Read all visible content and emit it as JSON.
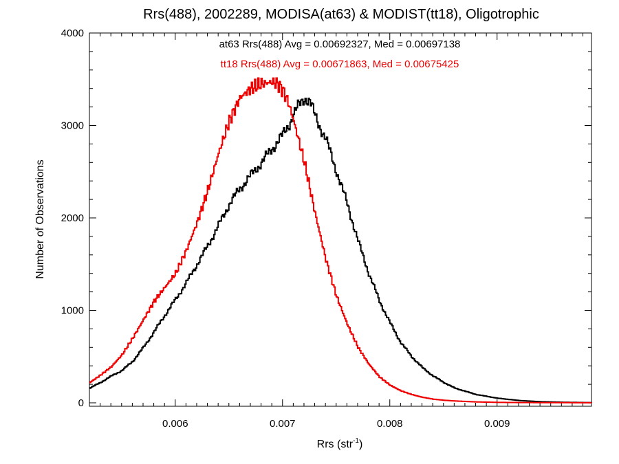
{
  "chart_data": {
    "type": "line",
    "title": "Rrs(488), 2002289, MODISA(at63) & MODIST(tt18), Oligotrophic",
    "xlabel_base": "Rrs (str",
    "xlabel_sup": "-1",
    "xlabel_close": ")",
    "ylabel": "Number of Observations",
    "xlim": [
      0.0052,
      0.00988
    ],
    "ylim": [
      0,
      4000
    ],
    "x_ticks": [
      0.006,
      0.007,
      0.008,
      0.009
    ],
    "x_tick_labels": [
      "0.006",
      "0.007",
      "0.008",
      "0.009"
    ],
    "y_ticks": [
      0,
      1000,
      2000,
      3000,
      4000
    ],
    "y_tick_labels": [
      "0",
      "1000",
      "2000",
      "3000",
      "4000"
    ],
    "annotations": [
      {
        "text": "at63 Rrs(488) Avg = 0.00692327, Med = 0.00697138",
        "color": "#000000"
      },
      {
        "text": "tt18 Rrs(488) Avg = 0.00671863, Med = 0.00675425",
        "color": "#ee0000"
      }
    ],
    "series": [
      {
        "color": "#000000",
        "x": [
          0.0052,
          0.0053,
          0.0054,
          0.0055,
          0.0056,
          0.0057,
          0.0058,
          0.0059,
          0.006,
          0.0061,
          0.0062,
          0.0063,
          0.0064,
          0.0065,
          0.0066,
          0.0067,
          0.0068,
          0.0069,
          0.007,
          0.00705,
          0.0071,
          0.00715,
          0.0072,
          0.00725,
          0.0073,
          0.0074,
          0.0075,
          0.0076,
          0.0077,
          0.0078,
          0.0079,
          0.008,
          0.0081,
          0.0082,
          0.0083,
          0.0084,
          0.0085,
          0.0086,
          0.0088,
          0.009,
          0.0092,
          0.0094,
          0.0096,
          0.00988
        ],
        "y": [
          160,
          220,
          290,
          350,
          450,
          600,
          770,
          950,
          1120,
          1300,
          1500,
          1700,
          1920,
          2150,
          2320,
          2460,
          2600,
          2750,
          2900,
          3000,
          3120,
          3220,
          3300,
          3260,
          3100,
          2850,
          2500,
          2150,
          1750,
          1400,
          1100,
          860,
          650,
          500,
          380,
          290,
          220,
          160,
          90,
          50,
          25,
          12,
          6,
          2
        ]
      },
      {
        "color": "#ee0000",
        "x": [
          0.0052,
          0.0053,
          0.0054,
          0.0055,
          0.0056,
          0.0057,
          0.0058,
          0.0059,
          0.006,
          0.0061,
          0.0062,
          0.0063,
          0.0064,
          0.0065,
          0.0066,
          0.0067,
          0.0068,
          0.0069,
          0.00695,
          0.007,
          0.00705,
          0.0071,
          0.0072,
          0.0073,
          0.0074,
          0.0075,
          0.0076,
          0.0077,
          0.0078,
          0.0079,
          0.008,
          0.0081,
          0.0082,
          0.0083,
          0.0084,
          0.0085,
          0.0086,
          0.0088,
          0.009,
          0.0092,
          0.0094,
          0.00988
        ],
        "y": [
          220,
          300,
          390,
          520,
          700,
          900,
          1100,
          1250,
          1400,
          1650,
          1950,
          2300,
          2700,
          3050,
          3300,
          3400,
          3450,
          3470,
          3450,
          3380,
          3250,
          3050,
          2600,
          2050,
          1550,
          1150,
          850,
          600,
          420,
          280,
          190,
          130,
          90,
          60,
          40,
          28,
          20,
          10,
          5,
          3,
          2,
          1
        ]
      }
    ]
  }
}
